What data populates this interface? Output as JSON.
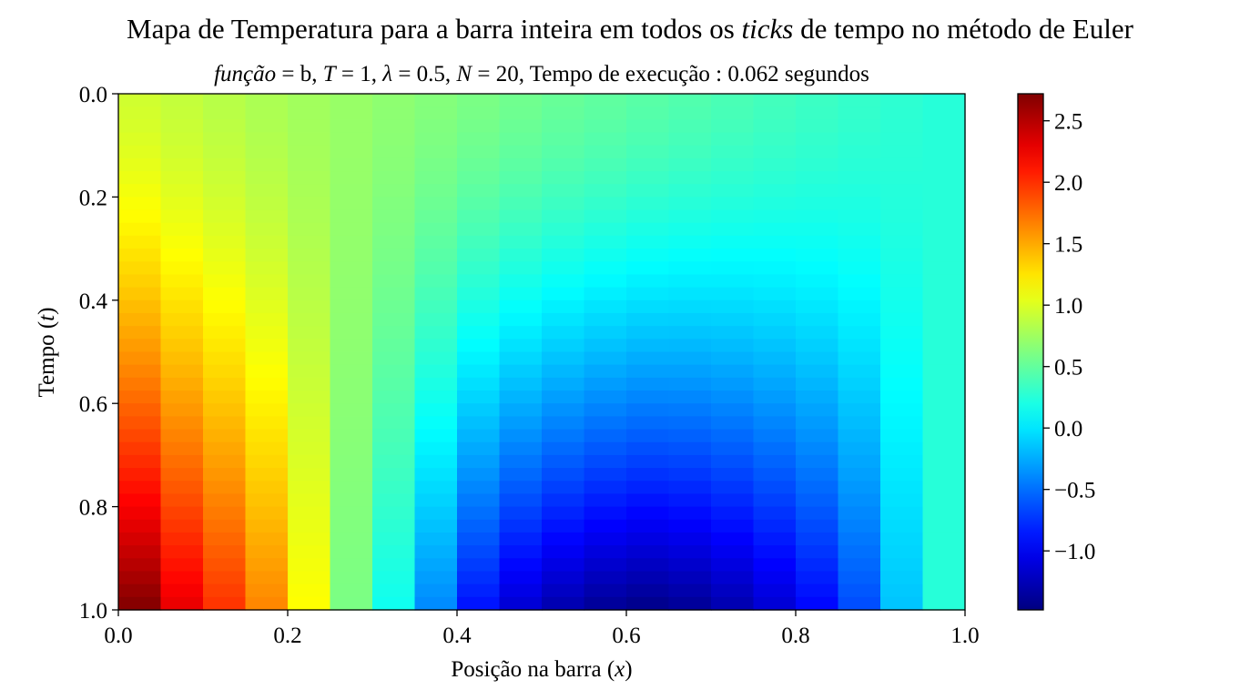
{
  "figure": {
    "title_prefix": "Mapa de Temperatura para a barra inteira em todos os ",
    "title_math": "ticks",
    "title_suffix": " de tempo no método de Euler",
    "subtitle_func_label": "função",
    "subtitle_func_eq": " = b,  ",
    "subtitle_T_label": "T",
    "subtitle_T_eq": " = 1,  ",
    "subtitle_lambda_label": "λ",
    "subtitle_lambda_eq": " = 0.5,  ",
    "subtitle_N_label": "N",
    "subtitle_N_eq": " = 20,  ",
    "subtitle_time": "Tempo de execução :  0.062 segundos",
    "xlabel_text": "Posição na barra (",
    "xlabel_var": "x",
    "xlabel_close": ")",
    "ylabel_text": "Tempo (",
    "ylabel_var": "t",
    "ylabel_close": ")"
  },
  "chart_data": {
    "type": "heatmap",
    "colormap": "jet",
    "x_range": [
      0.0,
      1.0
    ],
    "y_range": [
      0.0,
      1.0
    ],
    "y_inverted": true,
    "x_ticks": [
      "0.0",
      "0.2",
      "0.4",
      "0.6",
      "0.8",
      "1.0"
    ],
    "y_ticks": [
      "0.0",
      "0.2",
      "0.4",
      "0.6",
      "0.8",
      "1.0"
    ],
    "colorbar_range": [
      -1.48,
      2.72
    ],
    "colorbar_ticks": [
      -1.0,
      -0.5,
      0.0,
      0.5,
      1.0,
      1.5,
      2.0,
      2.5
    ],
    "colorbar_tick_labels": [
      "−1.0",
      "−0.5",
      "0.0",
      "0.5",
      "1.0",
      "1.5",
      "2.0",
      "2.5"
    ],
    "columns": 20,
    "rows": 40,
    "value_at_t0": [
      0.95,
      0.9,
      0.85,
      0.8,
      0.76,
      0.72,
      0.68,
      0.64,
      0.6,
      0.56,
      0.52,
      0.49,
      0.46,
      0.43,
      0.4,
      0.37,
      0.34,
      0.31,
      0.28,
      0.25
    ],
    "value_at_t1": [
      2.72,
      2.3,
      2.0,
      1.65,
      1.15,
      0.6,
      0.15,
      -0.4,
      -0.9,
      -1.15,
      -1.3,
      -1.4,
      -1.45,
      -1.4,
      -1.3,
      -1.15,
      -0.95,
      -0.65,
      -0.15,
      0.25
    ]
  }
}
